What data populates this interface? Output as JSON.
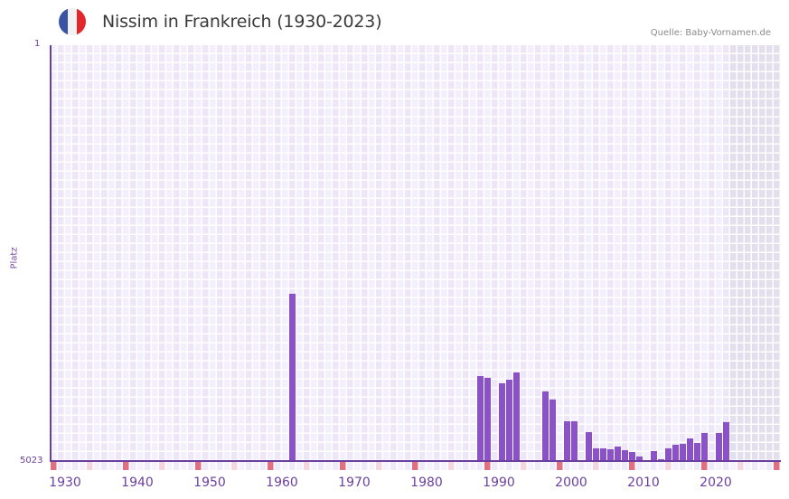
{
  "header": {
    "title": "Nissim in Frankreich (1930-2023)",
    "source": "Quelle: Baby-Vornamen.de",
    "flag_icon": "france-flag-icon",
    "flag_colors": [
      "#3a54a4",
      "#f2f2f2",
      "#e4262c"
    ]
  },
  "axes": {
    "y_title": "Platz",
    "y_top_label": "1",
    "y_bottom_label": "5023",
    "x_labels": [
      "1930",
      "1940",
      "1950",
      "1960",
      "1970",
      "1980",
      "1990",
      "2000",
      "2010",
      "2020"
    ]
  },
  "colors": {
    "bar": "#8a52c6",
    "axis": "#6b3fa0",
    "cell_a": "#f3effc",
    "cell_b": "#ece6f7",
    "future_cell": "#e3dfec",
    "decade_marker": "#e07080",
    "half_decade_marker": "#f4d6df"
  },
  "chart_data": {
    "type": "bar",
    "title": "Nissim in Frankreich (1930-2023)",
    "xlabel": "",
    "ylabel": "Platz",
    "y_inverted": true,
    "ylim": [
      1,
      5023
    ],
    "xlim": [
      1930,
      2030
    ],
    "grid": true,
    "shaded_future_from": 2024,
    "x": [
      1963,
      1989,
      1990,
      1992,
      1993,
      1994,
      1998,
      1999,
      2001,
      2002,
      2004,
      2005,
      2006,
      2007,
      2008,
      2009,
      2010,
      2011,
      2013,
      2014,
      2015,
      2016,
      2017,
      2018,
      2019,
      2020,
      2022,
      2023
    ],
    "values": [
      3003,
      3997,
      4018,
      4084,
      4040,
      3953,
      4182,
      4280,
      4543,
      4543,
      4674,
      4870,
      4870,
      4881,
      4848,
      4892,
      4914,
      4968,
      4903,
      5001,
      4870,
      4826,
      4815,
      4750,
      4804,
      4684,
      4684,
      4553
    ]
  }
}
